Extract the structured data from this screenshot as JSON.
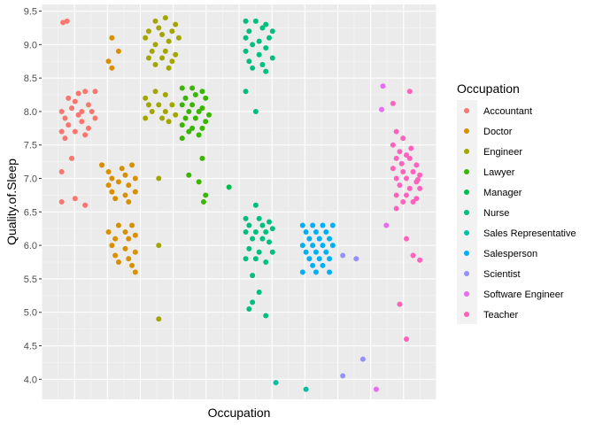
{
  "chart_data": {
    "type": "scatter",
    "title": "",
    "xlabel": "Occupation",
    "ylabel": "Quality.of.Sleep",
    "ylim": [
      3.7,
      9.6
    ],
    "yticks": [
      4.0,
      4.5,
      5.0,
      5.5,
      6.0,
      6.5,
      7.0,
      7.5,
      8.0,
      8.5,
      9.0,
      9.5
    ],
    "ytick_labels": [
      "4.0",
      "4.5",
      "5.0",
      "5.5",
      "6.0",
      "6.5",
      "7.0",
      "7.5",
      "8.0",
      "8.5",
      "9.0",
      "9.5"
    ],
    "jitter": "x-jitter within category",
    "grid": true,
    "legend": {
      "title": "Occupation",
      "position": "right",
      "entries": [
        "Accountant",
        "Doctor",
        "Engineer",
        "Lawyer",
        "Manager",
        "Nurse",
        "Sales Representative",
        "Salesperson",
        "Scientist",
        "Software Engineer",
        "Teacher"
      ]
    },
    "series": [
      {
        "name": "Accountant",
        "color": "#F8766D",
        "x": [
          0.55,
          0.8,
          1.2,
          0.95
        ],
        "y": [
          9.3,
          8.0,
          7.3,
          6.6
        ],
        "note_points": [
          [
            0.62,
            9.33
          ],
          [
            0.68,
            9.35
          ],
          [
            0.85,
            8.27
          ],
          [
            0.95,
            8.3
          ],
          [
            1.1,
            8.3
          ],
          [
            0.7,
            8.2
          ],
          [
            0.8,
            8.15
          ],
          [
            1.0,
            8.1
          ],
          [
            0.6,
            8.0
          ],
          [
            0.75,
            8.05
          ],
          [
            0.9,
            8.0
          ],
          [
            1.05,
            8.0
          ],
          [
            0.65,
            7.9
          ],
          [
            0.85,
            7.95
          ],
          [
            1.1,
            7.9
          ],
          [
            0.7,
            7.8
          ],
          [
            0.9,
            7.85
          ],
          [
            1.0,
            7.75
          ],
          [
            0.6,
            7.7
          ],
          [
            0.8,
            7.7
          ],
          [
            0.95,
            7.65
          ],
          [
            0.65,
            7.6
          ],
          [
            1.2,
            7.2
          ],
          [
            0.75,
            7.3
          ],
          [
            0.6,
            7.1
          ],
          [
            0.8,
            6.7
          ],
          [
            0.95,
            6.6
          ],
          [
            0.6,
            6.65
          ]
        ]
      },
      {
        "name": "Doctor",
        "color": "#D89000",
        "note_points": [
          [
            1.35,
            9.1
          ],
          [
            1.45,
            8.9
          ],
          [
            1.3,
            8.75
          ],
          [
            1.35,
            8.65
          ],
          [
            1.2,
            7.2
          ],
          [
            1.3,
            7.1
          ],
          [
            1.5,
            7.15
          ],
          [
            1.65,
            7.2
          ],
          [
            1.35,
            7.0
          ],
          [
            1.55,
            7.05
          ],
          [
            1.7,
            7.0
          ],
          [
            1.3,
            6.9
          ],
          [
            1.45,
            6.95
          ],
          [
            1.6,
            6.9
          ],
          [
            1.35,
            6.8
          ],
          [
            1.55,
            6.75
          ],
          [
            1.7,
            6.8
          ],
          [
            1.4,
            6.7
          ],
          [
            1.6,
            6.65
          ],
          [
            1.45,
            6.3
          ],
          [
            1.65,
            6.3
          ],
          [
            1.3,
            6.2
          ],
          [
            1.55,
            6.2
          ],
          [
            1.7,
            6.15
          ],
          [
            1.4,
            6.1
          ],
          [
            1.6,
            6.1
          ],
          [
            1.35,
            6.0
          ],
          [
            1.55,
            5.95
          ],
          [
            1.7,
            5.9
          ],
          [
            1.4,
            5.85
          ],
          [
            1.6,
            5.8
          ],
          [
            1.45,
            5.75
          ],
          [
            1.65,
            5.7
          ],
          [
            1.7,
            5.6
          ]
        ]
      },
      {
        "name": "Engineer",
        "color": "#A3A500",
        "note_points": [
          [
            2.0,
            9.35
          ],
          [
            2.15,
            9.4
          ],
          [
            2.3,
            9.3
          ],
          [
            1.9,
            9.2
          ],
          [
            2.05,
            9.25
          ],
          [
            2.25,
            9.2
          ],
          [
            1.85,
            9.1
          ],
          [
            2.1,
            9.15
          ],
          [
            2.35,
            9.1
          ],
          [
            2.0,
            9.0
          ],
          [
            2.2,
            9.05
          ],
          [
            1.95,
            8.9
          ],
          [
            2.15,
            8.9
          ],
          [
            2.3,
            8.85
          ],
          [
            1.9,
            8.8
          ],
          [
            2.1,
            8.8
          ],
          [
            2.25,
            8.75
          ],
          [
            2.0,
            8.7
          ],
          [
            2.2,
            8.65
          ],
          [
            1.85,
            8.2
          ],
          [
            2.0,
            8.3
          ],
          [
            2.15,
            8.25
          ],
          [
            1.9,
            8.1
          ],
          [
            2.05,
            8.1
          ],
          [
            2.25,
            8.1
          ],
          [
            1.95,
            8.0
          ],
          [
            2.15,
            8.0
          ],
          [
            2.3,
            7.95
          ],
          [
            1.85,
            7.9
          ],
          [
            2.1,
            7.9
          ],
          [
            2.2,
            7.85
          ],
          [
            2.05,
            7.0
          ],
          [
            2.05,
            6.0
          ],
          [
            2.05,
            4.9
          ]
        ]
      },
      {
        "name": "Lawyer",
        "color": "#39B600",
        "note_points": [
          [
            2.4,
            8.35
          ],
          [
            2.55,
            8.35
          ],
          [
            2.7,
            8.3
          ],
          [
            2.45,
            8.2
          ],
          [
            2.6,
            8.25
          ],
          [
            2.75,
            8.2
          ],
          [
            2.4,
            8.1
          ],
          [
            2.55,
            8.1
          ],
          [
            2.7,
            8.05
          ],
          [
            2.5,
            8.0
          ],
          [
            2.65,
            8.0
          ],
          [
            2.8,
            7.95
          ],
          [
            2.45,
            7.9
          ],
          [
            2.6,
            7.9
          ],
          [
            2.75,
            7.85
          ],
          [
            2.4,
            7.8
          ],
          [
            2.55,
            7.75
          ],
          [
            2.7,
            7.75
          ],
          [
            2.5,
            7.7
          ],
          [
            2.65,
            7.65
          ],
          [
            2.4,
            7.6
          ],
          [
            2.7,
            7.3
          ],
          [
            2.5,
            7.05
          ],
          [
            2.65,
            6.95
          ],
          [
            2.75,
            6.75
          ],
          [
            2.72,
            6.65
          ]
        ]
      },
      {
        "name": "Manager",
        "color": "#00BB4E",
        "note_points": [
          [
            3.1,
            6.87
          ]
        ]
      },
      {
        "name": "Nurse",
        "color": "#00BF7D",
        "note_points": [
          [
            3.35,
            9.35
          ],
          [
            3.5,
            9.35
          ],
          [
            3.65,
            9.3
          ],
          [
            3.4,
            9.2
          ],
          [
            3.6,
            9.25
          ],
          [
            3.75,
            9.2
          ],
          [
            3.35,
            9.1
          ],
          [
            3.55,
            9.05
          ],
          [
            3.7,
            9.1
          ],
          [
            3.45,
            9.0
          ],
          [
            3.65,
            8.95
          ],
          [
            3.35,
            8.9
          ],
          [
            3.55,
            8.85
          ],
          [
            3.75,
            8.8
          ],
          [
            3.4,
            8.75
          ],
          [
            3.6,
            8.7
          ],
          [
            3.45,
            8.65
          ],
          [
            3.65,
            8.6
          ],
          [
            3.35,
            8.3
          ],
          [
            3.5,
            8.0
          ],
          [
            3.5,
            6.6
          ],
          [
            3.35,
            6.4
          ],
          [
            3.55,
            6.4
          ],
          [
            3.7,
            6.35
          ],
          [
            3.4,
            6.3
          ],
          [
            3.6,
            6.3
          ],
          [
            3.75,
            6.25
          ],
          [
            3.35,
            6.2
          ],
          [
            3.5,
            6.2
          ],
          [
            3.65,
            6.2
          ],
          [
            3.45,
            6.1
          ],
          [
            3.6,
            6.1
          ],
          [
            3.7,
            6.05
          ],
          [
            3.4,
            5.95
          ],
          [
            3.55,
            5.9
          ],
          [
            3.75,
            5.9
          ],
          [
            3.35,
            5.8
          ],
          [
            3.5,
            5.8
          ],
          [
            3.65,
            5.75
          ],
          [
            3.45,
            5.55
          ],
          [
            3.55,
            5.3
          ],
          [
            3.45,
            5.15
          ],
          [
            3.65,
            4.95
          ],
          [
            3.4,
            5.05
          ]
        ]
      },
      {
        "name": "Sales Representative",
        "color": "#00C1A3",
        "note_points": [
          [
            3.8,
            3.95
          ],
          [
            4.25,
            3.85
          ]
        ]
      },
      {
        "name": "Salesperson",
        "color": "#00B0F6",
        "note_points": [
          [
            4.2,
            6.3
          ],
          [
            4.35,
            6.3
          ],
          [
            4.5,
            6.3
          ],
          [
            4.65,
            6.3
          ],
          [
            4.25,
            6.2
          ],
          [
            4.4,
            6.2
          ],
          [
            4.55,
            6.2
          ],
          [
            4.3,
            6.1
          ],
          [
            4.45,
            6.1
          ],
          [
            4.6,
            6.1
          ],
          [
            4.2,
            6.0
          ],
          [
            4.35,
            6.0
          ],
          [
            4.5,
            6.0
          ],
          [
            4.65,
            6.0
          ],
          [
            4.25,
            5.9
          ],
          [
            4.4,
            5.9
          ],
          [
            4.55,
            5.9
          ],
          [
            4.3,
            5.8
          ],
          [
            4.45,
            5.8
          ],
          [
            4.6,
            5.8
          ],
          [
            4.35,
            5.7
          ],
          [
            4.5,
            5.7
          ],
          [
            4.2,
            5.6
          ],
          [
            4.4,
            5.6
          ],
          [
            4.6,
            5.6
          ]
        ]
      },
      {
        "name": "Scientist",
        "color": "#9590FF",
        "note_points": [
          [
            4.8,
            5.85
          ],
          [
            5.0,
            5.8
          ],
          [
            4.8,
            4.05
          ],
          [
            5.1,
            4.3
          ]
        ]
      },
      {
        "name": "Software Engineer",
        "color": "#E76BF3",
        "note_points": [
          [
            5.3,
            3.85
          ],
          [
            5.45,
            6.3
          ],
          [
            5.4,
            8.38
          ],
          [
            5.38,
            8.03
          ]
        ]
      },
      {
        "name": "Teacher",
        "color": "#FF62BC",
        "note_points": [
          [
            5.55,
            8.12
          ],
          [
            5.8,
            8.3
          ],
          [
            5.6,
            7.7
          ],
          [
            5.7,
            7.6
          ],
          [
            5.55,
            7.5
          ],
          [
            5.65,
            7.4
          ],
          [
            5.75,
            7.35
          ],
          [
            5.6,
            7.3
          ],
          [
            5.8,
            7.3
          ],
          [
            5.9,
            7.2
          ],
          [
            5.55,
            7.15
          ],
          [
            5.7,
            7.1
          ],
          [
            5.85,
            7.1
          ],
          [
            5.95,
            7.05
          ],
          [
            5.6,
            7.0
          ],
          [
            5.75,
            7.0
          ],
          [
            5.9,
            6.95
          ],
          [
            5.65,
            6.9
          ],
          [
            5.8,
            6.85
          ],
          [
            5.95,
            6.85
          ],
          [
            5.6,
            6.75
          ],
          [
            5.75,
            6.75
          ],
          [
            5.9,
            6.7
          ],
          [
            5.7,
            6.65
          ],
          [
            5.85,
            6.65
          ],
          [
            5.6,
            6.55
          ],
          [
            5.75,
            6.1
          ],
          [
            5.85,
            5.85
          ],
          [
            5.95,
            5.78
          ],
          [
            5.65,
            5.12
          ],
          [
            5.75,
            4.6
          ],
          [
            5.92,
            6.98
          ],
          [
            5.68,
            7.22
          ],
          [
            5.82,
            7.45
          ]
        ]
      }
    ]
  }
}
